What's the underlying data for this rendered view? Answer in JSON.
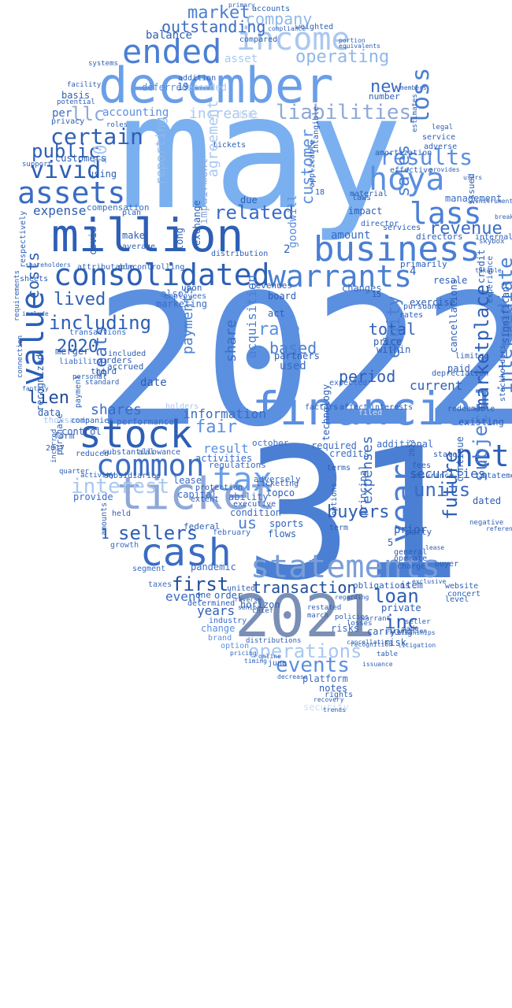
{
  "palette": {
    "darkest": "#1f4e9c",
    "dark": "#2d5fb5",
    "mid": "#4a7fd4",
    "base": "#5b8fe0",
    "light": "#7ab0f0",
    "pale": "#a9c8f0",
    "faint": "#cfdff5",
    "ghost": "#e6eefa"
  },
  "words": [
    {
      "t": "may",
      "c": "#7ab0f0"
    },
    {
      "t": "2022",
      "c": "#5b8fe0"
    },
    {
      "t": "31",
      "c": "#4a7fd4"
    },
    {
      "t": "december",
      "c": "#6a9fe8"
    },
    {
      "t": "million",
      "c": "#2d5fb5"
    },
    {
      "t": "financial",
      "c": "#5b8fe0"
    },
    {
      "t": "2021",
      "c": "#7a8fb5"
    },
    {
      "t": "ticket",
      "c": "#8fa8d8"
    },
    {
      "t": "consolidated",
      "c": "#2d5fb5"
    },
    {
      "t": "business",
      "c": "#4a7fd4"
    },
    {
      "t": "stock",
      "c": "#2d5fb5"
    },
    {
      "t": "cash",
      "c": "#3a6cc4"
    },
    {
      "t": "statements",
      "c": "#7a9ed8"
    },
    {
      "t": "income",
      "c": "#a9c8f0"
    },
    {
      "t": "ended",
      "c": "#4a7fd4"
    },
    {
      "t": "common",
      "c": "#3a6cc4"
    },
    {
      "t": "assets",
      "c": "#3a6cc4"
    },
    {
      "t": "value",
      "c": "#2d5fb5"
    },
    {
      "t": "tax",
      "c": "#6a9fe8"
    },
    {
      "t": "warrants",
      "c": "#4a7fd4"
    },
    {
      "t": "hoya",
      "c": "#5b8fe0"
    },
    {
      "t": "lass",
      "c": "#4a7fd4"
    },
    {
      "t": "net",
      "c": "#2d5fb5"
    },
    {
      "t": "year",
      "c": "#4a7fd4"
    },
    {
      "t": "vivid",
      "c": "#2d5fb5"
    },
    {
      "t": "interest",
      "c": "#a9c8f0"
    },
    {
      "t": "loss",
      "c": "#4a7fd4"
    },
    {
      "t": "certain",
      "c": "#2d5fb5"
    },
    {
      "t": "results",
      "c": "#5b8fe0"
    },
    {
      "t": "liabilities",
      "c": "#8fa8d8"
    },
    {
      "t": "operating",
      "c": "#8fb8e8"
    },
    {
      "t": "related",
      "c": "#3a6cc4"
    },
    {
      "t": "including",
      "c": "#2d5fb5"
    },
    {
      "t": "public",
      "c": "#2d5fb5"
    },
    {
      "t": "events",
      "c": "#5b8fe0"
    },
    {
      "t": "operations",
      "c": "#a9c8f0"
    },
    {
      "t": "units",
      "c": "#3a6cc4"
    },
    {
      "t": "sellers",
      "c": "#2d5fb5"
    },
    {
      "t": "first",
      "c": "#1f4e9c"
    },
    {
      "t": "transaction",
      "c": "#1f4e9c"
    },
    {
      "t": "loan",
      "c": "#2d5fb5"
    },
    {
      "t": "inc",
      "c": "#2d5fb5"
    },
    {
      "t": "market",
      "c": "#4a7fd4"
    },
    {
      "t": "company",
      "c": "#8fb8e8"
    },
    {
      "t": "outstanding",
      "c": "#3a6cc4"
    },
    {
      "t": "intermediate",
      "c": "#4a7fd4"
    },
    {
      "t": "marketplace",
      "c": "#2d5fb5"
    },
    {
      "t": "revenue",
      "c": "#3a6cc4"
    },
    {
      "t": "lived",
      "c": "#2d5fb5"
    },
    {
      "t": "lien",
      "c": "#1f4e9c"
    },
    {
      "t": "shares",
      "c": "#3a6cc4"
    },
    {
      "t": "fair",
      "c": "#5b8fe0"
    },
    {
      "t": "information",
      "c": "#3a6cc4"
    },
    {
      "t": "rate",
      "c": "#5b8fe0"
    },
    {
      "t": "based",
      "c": "#4a7fd4"
    },
    {
      "t": "total",
      "c": "#2d5fb5"
    },
    {
      "t": "period",
      "c": "#2d5fb5"
    },
    {
      "t": "equity",
      "c": "#4a7fd4"
    },
    {
      "t": "future",
      "c": "#2d5fb5"
    },
    {
      "t": "subject",
      "c": "#4a7fd4"
    },
    {
      "t": "buyers",
      "c": "#2d5fb5"
    },
    {
      "t": "expenses",
      "c": "#3a6cc4"
    },
    {
      "t": "securities",
      "c": "#2d5fb5"
    },
    {
      "t": "costs",
      "c": "#2d5fb5"
    },
    {
      "t": "2020",
      "c": "#2d5fb5"
    },
    {
      "t": "seats",
      "c": "#3a6cc4"
    },
    {
      "t": "expense",
      "c": "#2d5fb5"
    },
    {
      "t": "accounting",
      "c": "#5b8fe0"
    },
    {
      "t": "increase",
      "c": "#a9c8f0"
    },
    {
      "t": "llc",
      "c": "#8fa8d8"
    },
    {
      "t": "10",
      "c": "#a9c8f0"
    },
    {
      "t": "balance",
      "c": "#2d5fb5"
    },
    {
      "t": "new",
      "c": "#3a6cc4"
    },
    {
      "t": "sales",
      "c": "#4a7fd4"
    },
    {
      "t": "customer",
      "c": "#5b8fe0"
    },
    {
      "t": "years",
      "c": "#2d5fb5"
    },
    {
      "t": "event",
      "c": "#3a6cc4"
    },
    {
      "t": "result",
      "c": "#5b8fe0"
    },
    {
      "t": "us",
      "c": "#4a7fd4"
    },
    {
      "t": "payments",
      "c": "#4a7fd4"
    },
    {
      "t": "share",
      "c": "#3a6cc4"
    },
    {
      "t": "reporting",
      "c": "#8fb8e8"
    },
    {
      "t": "agreement",
      "c": "#a9c8f0"
    },
    {
      "t": "impairment",
      "c": "#8fa8d8"
    },
    {
      "t": "acquisition",
      "c": "#4a7fd4"
    },
    {
      "t": "prior",
      "c": "#2d5fb5"
    },
    {
      "t": "current",
      "c": "#2d5fb5"
    },
    {
      "t": "used",
      "c": "#3a6cc4"
    },
    {
      "t": "amount",
      "c": "#3a6cc4"
    },
    {
      "t": "goodwill",
      "c": "#5b8fe0"
    },
    {
      "t": "management",
      "c": "#3a6cc4"
    },
    {
      "t": "per",
      "c": "#3a6cc4"
    },
    {
      "t": "customers",
      "c": "#2d5fb5"
    },
    {
      "t": "deferred",
      "c": "#5b8fe0"
    },
    {
      "t": "recorded",
      "c": "#a9c8f0"
    },
    {
      "t": "asset",
      "c": "#a9c8f0"
    },
    {
      "t": "debt",
      "c": "#cfdff5"
    },
    {
      "t": "compensation",
      "c": "#3a6cc4"
    },
    {
      "t": "accrued",
      "c": "#2d5fb5"
    },
    {
      "t": "included",
      "c": "#2d5fb5"
    },
    {
      "t": "make",
      "c": "#2d5fb5"
    },
    {
      "t": "average",
      "c": "#2d5fb5"
    },
    {
      "t": "marketing",
      "c": "#3a6cc4"
    },
    {
      "t": "also",
      "c": "#4a7fd4"
    },
    {
      "t": "date",
      "c": "#2d5fb5"
    },
    {
      "t": "orders",
      "c": "#2d5fb5"
    },
    {
      "t": "third",
      "c": "#2d5fb5"
    },
    {
      "t": "merger",
      "c": "#2d5fb5"
    },
    {
      "t": "recognized",
      "c": "#2d5fb5"
    },
    {
      "t": "data",
      "c": "#2d5fb5"
    },
    {
      "t": "control",
      "c": "#2d5fb5"
    },
    {
      "t": "performance",
      "c": "#3a6cc4"
    },
    {
      "t": "purchase",
      "c": "#2d5fb5"
    },
    {
      "t": "activities",
      "c": "#3a6cc4"
    },
    {
      "t": "lease",
      "c": "#3a6cc4"
    },
    {
      "t": "capital",
      "c": "#3a6cc4"
    },
    {
      "t": "ability",
      "c": "#3a6cc4"
    },
    {
      "t": "condition",
      "c": "#3a6cc4"
    },
    {
      "t": "february",
      "c": "#3a6cc4"
    },
    {
      "t": "growth",
      "c": "#3a6cc4"
    },
    {
      "t": "segment",
      "c": "#3a6cc4"
    },
    {
      "t": "pandemic",
      "c": "#3a6cc4"
    },
    {
      "t": "taxes",
      "c": "#3a6cc4"
    },
    {
      "t": "industry",
      "c": "#3a6cc4"
    },
    {
      "t": "change",
      "c": "#5b8fe0"
    },
    {
      "t": "brand",
      "c": "#5b8fe0"
    },
    {
      "t": "option",
      "c": "#5b8fe0"
    },
    {
      "t": "platform",
      "c": "#3a6cc4"
    },
    {
      "t": "notes",
      "c": "#2d5fb5"
    },
    {
      "t": "rights",
      "c": "#2d5fb5"
    },
    {
      "t": "security",
      "c": "#cfdff5"
    },
    {
      "t": "june",
      "c": "#2d5fb5"
    },
    {
      "t": "risks",
      "c": "#3a6cc4"
    },
    {
      "t": "carrying",
      "c": "#2d5fb5"
    },
    {
      "t": "private",
      "c": "#2d5fb5"
    },
    {
      "t": "item",
      "c": "#2d5fb5"
    },
    {
      "t": "terms",
      "c": "#2d5fb5"
    },
    {
      "t": "principal",
      "c": "#2d5fb5"
    },
    {
      "t": "term",
      "c": "#2d5fb5"
    },
    {
      "t": "options",
      "c": "#2d5fb5"
    },
    {
      "t": "technology",
      "c": "#2d5fb5"
    },
    {
      "t": "dated",
      "c": "#2d5fb5"
    },
    {
      "t": "continue",
      "c": "#2d5fb5"
    },
    {
      "t": "exercise",
      "c": "#2d5fb5"
    },
    {
      "t": "resale",
      "c": "#2d5fb5"
    },
    {
      "t": "paid",
      "c": "#2d5fb5"
    },
    {
      "t": "existing",
      "c": "#2d5fb5"
    },
    {
      "t": "state",
      "c": "#2d5fb5"
    },
    {
      "t": "required",
      "c": "#3a6cc4"
    },
    {
      "t": "credits",
      "c": "#3a6cc4"
    },
    {
      "t": "additional",
      "c": "#3a6cc4"
    },
    {
      "t": "expected",
      "c": "#3a6cc4"
    },
    {
      "t": "changes",
      "c": "#3a6cc4"
    },
    {
      "t": "within",
      "c": "#2d5fb5"
    },
    {
      "t": "price",
      "c": "#2d5fb5"
    },
    {
      "t": "impact",
      "c": "#2d5fb5"
    },
    {
      "t": "laws",
      "c": "#2d5fb5"
    },
    {
      "t": "material",
      "c": "#2d5fb5"
    },
    {
      "t": "directors",
      "c": "#2d5fb5"
    },
    {
      "t": "primarily",
      "c": "#2d5fb5"
    },
    {
      "t": "services",
      "c": "#2d5fb5"
    },
    {
      "t": "director",
      "c": "#2d5fb5"
    },
    {
      "t": "service",
      "c": "#2d5fb5"
    },
    {
      "t": "issued",
      "c": "#2d5fb5"
    },
    {
      "t": "internal",
      "c": "#2d5fb5"
    },
    {
      "t": "regulations",
      "c": "#3a6cc4"
    },
    {
      "t": "federal",
      "c": "#2d5fb5"
    },
    {
      "t": "revenues",
      "c": "#2d5fb5"
    },
    {
      "t": "partners",
      "c": "#2d5fb5"
    },
    {
      "t": "board",
      "c": "#2d5fb5"
    },
    {
      "t": "act",
      "c": "#2d5fb5"
    },
    {
      "t": "sports",
      "c": "#2d5fb5"
    },
    {
      "t": "flows",
      "c": "#2d5fb5"
    },
    {
      "t": "topco",
      "c": "#2d5fb5"
    },
    {
      "t": "adversely",
      "c": "#3a6cc4"
    },
    {
      "t": "october",
      "c": "#3a6cc4"
    },
    {
      "t": "employees",
      "c": "#3a6cc4"
    },
    {
      "t": "liability",
      "c": "#3a6cc4"
    },
    {
      "t": "transactions",
      "c": "#3a6cc4"
    },
    {
      "t": "provide",
      "c": "#3a6cc4"
    },
    {
      "t": "thousands",
      "c": "#a9c8f0"
    },
    {
      "t": "form",
      "c": "#2d5fb5"
    },
    {
      "t": "2017",
      "c": "#2d5fb5"
    },
    {
      "t": "holders",
      "c": "#a9c8f0"
    },
    {
      "t": "long",
      "c": "#2d5fb5"
    },
    {
      "t": "exchange",
      "c": "#2d5fb5"
    },
    {
      "t": "distribution",
      "c": "#2d5fb5"
    },
    {
      "t": "rates",
      "c": "#2d5fb5"
    },
    {
      "t": "factors",
      "c": "#2d5fb5"
    },
    {
      "t": "affect",
      "c": "#2d5fb5"
    },
    {
      "t": "interests",
      "c": "#2d5fb5"
    },
    {
      "t": "filed",
      "c": "#cfdff5"
    },
    {
      "t": "1",
      "c": "#2d5fb5"
    },
    {
      "t": "2",
      "c": "#2d5fb5"
    },
    {
      "t": "3",
      "c": "#2d5fb5"
    },
    {
      "t": "4",
      "c": "#2d5fb5"
    },
    {
      "t": "5",
      "c": "#2d5fb5"
    },
    {
      "t": "18",
      "c": "#2d5fb5"
    },
    {
      "t": "19",
      "c": "#2d5fb5"
    },
    {
      "t": "tickets",
      "c": "#2d5fb5"
    },
    {
      "t": "applicable",
      "c": "#2d5fb5"
    },
    {
      "t": "intangible",
      "c": "#2d5fb5"
    },
    {
      "t": "addition",
      "c": "#2d5fb5"
    },
    {
      "t": "due",
      "c": "#2d5fb5"
    },
    {
      "t": "upon",
      "c": "#2d5fb5"
    },
    {
      "t": "number",
      "c": "#2d5fb5"
    },
    {
      "t": "compared",
      "c": "#2d5fb5"
    },
    {
      "t": "accounts",
      "c": "#2d5fb5"
    },
    {
      "t": "primary",
      "c": "#2d5fb5"
    },
    {
      "t": "fees",
      "c": "#2d5fb5"
    },
    {
      "t": "insurance",
      "c": "#2d5fb5"
    },
    {
      "t": "statement",
      "c": "#2d5fb5"
    },
    {
      "t": "general",
      "c": "#2d5fb5"
    },
    {
      "t": "operate",
      "c": "#2d5fb5"
    },
    {
      "t": "charge",
      "c": "#2d5fb5"
    },
    {
      "t": "limited",
      "c": "#2d5fb5"
    },
    {
      "t": "depreciation",
      "c": "#2d5fb5"
    },
    {
      "t": "redeemable",
      "c": "#2d5fb5"
    },
    {
      "t": "cancellations",
      "c": "#2d5fb5"
    },
    {
      "t": "pursuant",
      "c": "#2d5fb5"
    },
    {
      "t": "significant",
      "c": "#2d5fb5"
    },
    {
      "t": "stockholders",
      "c": "#2d5fb5"
    },
    {
      "t": "estimates",
      "c": "#2d5fb5"
    },
    {
      "t": "effective",
      "c": "#2d5fb5"
    },
    {
      "t": "amortization",
      "c": "#2d5fb5"
    },
    {
      "t": "provides",
      "c": "#2d5fb5"
    },
    {
      "t": "adverse",
      "c": "#2d5fb5"
    },
    {
      "t": "buyer",
      "c": "#2d5fb5"
    },
    {
      "t": "level",
      "c": "#2d5fb5"
    },
    {
      "t": "website",
      "c": "#2d5fb5"
    },
    {
      "t": "concert",
      "c": "#2d5fb5"
    },
    {
      "t": "seller",
      "c": "#2d5fb5"
    },
    {
      "t": "made",
      "c": "#2d5fb5"
    },
    {
      "t": "restated",
      "c": "#2d5fb5"
    },
    {
      "t": "march",
      "c": "#2d5fb5"
    },
    {
      "t": "risk",
      "c": "#2d5fb5"
    },
    {
      "t": "table",
      "c": "#2d5fb5"
    },
    {
      "t": "warrant",
      "c": "#2d5fb5"
    },
    {
      "t": "policies",
      "c": "#2d5fb5"
    },
    {
      "t": "losses",
      "c": "#2d5fb5"
    },
    {
      "t": "obligations",
      "c": "#2d5fb5"
    },
    {
      "t": "party",
      "c": "#2d5fb5"
    },
    {
      "t": "regarding",
      "c": "#2d5fb5"
    },
    {
      "t": "united",
      "c": "#2d5fb5"
    },
    {
      "t": "order",
      "c": "#2d5fb5"
    },
    {
      "t": "horizon",
      "c": "#2d5fb5"
    },
    {
      "t": "chief",
      "c": "#2d5fb5"
    },
    {
      "t": "one",
      "c": "#2d5fb5"
    },
    {
      "t": "determined",
      "c": "#2d5fb5"
    },
    {
      "t": "reverse",
      "c": "#2d5fb5"
    },
    {
      "t": "senior",
      "c": "#2d5fb5"
    },
    {
      "t": "distributions",
      "c": "#2d5fb5"
    },
    {
      "t": "pricing",
      "c": "#2d5fb5"
    },
    {
      "t": "timing",
      "c": "#2d5fb5"
    },
    {
      "t": "online",
      "c": "#2d5fb5"
    },
    {
      "t": "decrease",
      "c": "#2d5fb5"
    },
    {
      "t": "recovery",
      "c": "#2d5fb5"
    },
    {
      "t": "trends",
      "c": "#2d5fb5"
    },
    {
      "t": "held",
      "c": "#2d5fb5"
    },
    {
      "t": "amounts",
      "c": "#2d5fb5"
    },
    {
      "t": "executive",
      "c": "#2d5fb5"
    },
    {
      "t": "ticketing",
      "c": "#2d5fb5"
    },
    {
      "t": "protection",
      "c": "#2d5fb5"
    },
    {
      "t": "extent",
      "c": "#2d5fb5"
    },
    {
      "t": "subsidiaries",
      "c": "#2d5fb5"
    },
    {
      "t": "activity",
      "c": "#2d5fb5"
    },
    {
      "t": "reduced",
      "c": "#2d5fb5"
    },
    {
      "t": "substantial",
      "c": "#2d5fb5"
    },
    {
      "t": "allowance",
      "c": "#2d5fb5"
    },
    {
      "t": "quarter",
      "c": "#2d5fb5"
    },
    {
      "t": "incurred",
      "c": "#2d5fb5"
    },
    {
      "t": "companies",
      "c": "#2d5fb5"
    },
    {
      "t": "payment",
      "c": "#2d5fb5"
    },
    {
      "t": "personal",
      "c": "#2d5fb5"
    },
    {
      "t": "standard",
      "c": "#2d5fb5"
    },
    {
      "t": "fantasy",
      "c": "#2d5fb5"
    },
    {
      "t": "connection",
      "c": "#2d5fb5"
    },
    {
      "t": "requirements",
      "c": "#2d5fb5"
    },
    {
      "t": "include",
      "c": "#2d5fb5"
    },
    {
      "t": "sheets",
      "c": "#2d5fb5"
    },
    {
      "t": "respectively",
      "c": "#2d5fb5"
    },
    {
      "t": "shareholders",
      "c": "#2d5fb5"
    },
    {
      "t": "attributable",
      "c": "#2d5fb5"
    },
    {
      "t": "noncontrolling",
      "c": "#2d5fb5"
    },
    {
      "t": "covid",
      "c": "#2d5fb5"
    },
    {
      "t": "plan",
      "c": "#2d5fb5"
    },
    {
      "t": "using",
      "c": "#2d5fb5"
    },
    {
      "t": "support",
      "c": "#2d5fb5"
    },
    {
      "t": "privacy",
      "c": "#2d5fb5"
    },
    {
      "t": "potential",
      "c": "#2d5fb5"
    },
    {
      "t": "basis",
      "c": "#2d5fb5"
    },
    {
      "t": "facility",
      "c": "#2d5fb5"
    },
    {
      "t": "systems",
      "c": "#2d5fb5"
    },
    {
      "t": "roles",
      "c": "#2d5fb5"
    },
    {
      "t": "weighted",
      "c": "#2d5fb5"
    },
    {
      "t": "compliance",
      "c": "#2d5fb5"
    },
    {
      "t": "portion",
      "c": "#2d5fb5"
    },
    {
      "t": "equivalents",
      "c": "#2d5fb5"
    },
    {
      "t": "members",
      "c": "#2d5fb5"
    },
    {
      "t": "legal",
      "c": "#2d5fb5"
    },
    {
      "t": "users",
      "c": "#2d5fb5"
    },
    {
      "t": "breakage",
      "c": "#2d5fb5"
    },
    {
      "t": "instruments",
      "c": "#2d5fb5"
    },
    {
      "t": "skybox",
      "c": "#2d5fb5"
    },
    {
      "t": "taxable",
      "c": "#2d5fb5"
    },
    {
      "t": "experience",
      "c": "#2d5fb5"
    },
    {
      "t": "credit",
      "c": "#2d5fb5"
    },
    {
      "t": "reference",
      "c": "#2d5fb5"
    },
    {
      "t": "negative",
      "c": "#2d5fb5"
    },
    {
      "t": "litigation",
      "c": "#2d5fb5"
    },
    {
      "t": "relationships",
      "c": "#2d5fb5"
    },
    {
      "t": "transition",
      "c": "#2d5fb5"
    },
    {
      "t": "exclusive",
      "c": "#2d5fb5"
    },
    {
      "t": "lease",
      "c": "#2d5fb5"
    },
    {
      "t": "recognition",
      "c": "#2d5fb5"
    },
    {
      "t": "cancellation",
      "c": "#2d5fb5"
    },
    {
      "t": "issuance",
      "c": "#2d5fb5"
    },
    {
      "t": "2023",
      "c": "#2d5fb5"
    },
    {
      "t": "15",
      "c": "#2d5fb5"
    }
  ]
}
